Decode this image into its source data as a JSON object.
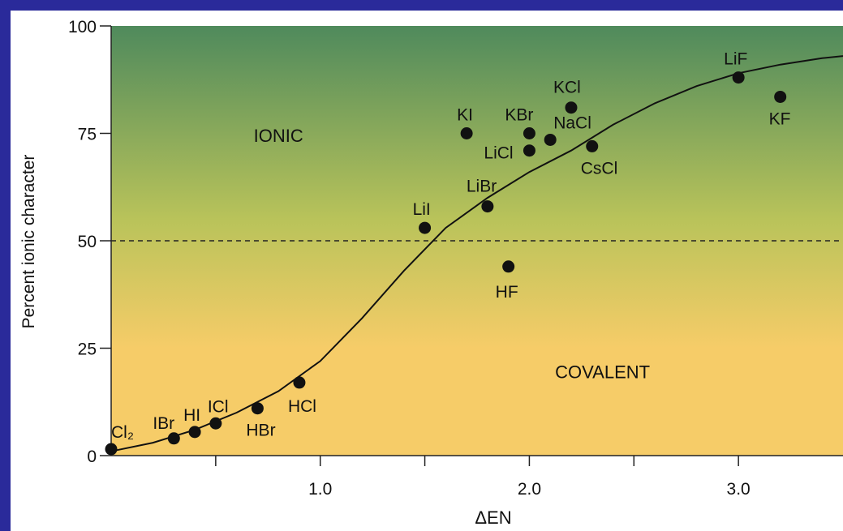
{
  "colors": {
    "frame": "#2a2a9a",
    "gradient_top": "#4f8a5c",
    "gradient_mid": "#b9c35a",
    "gradient_bottom": "#f6cc68",
    "curve": "#111111",
    "points": "#111111"
  },
  "chart_data": {
    "type": "scatter",
    "title": "",
    "xlabel": "ΔEN",
    "ylabel": "Percent ionic character",
    "xlim": [
      0,
      3.5
    ],
    "ylim": [
      0,
      100
    ],
    "x_ticks": [
      0.5,
      1.0,
      1.5,
      2.0,
      2.5,
      3.0
    ],
    "x_tick_labels": [
      "",
      "1.0",
      "",
      "2.0",
      "",
      "3.0"
    ],
    "y_ticks": [
      0,
      25,
      50,
      75,
      100
    ],
    "y_tick_labels": [
      "0",
      "25",
      "50",
      "75",
      "100"
    ],
    "reference_line": {
      "y": 50,
      "style": "dashed"
    },
    "region_labels": [
      {
        "text": "IONIC",
        "x": 0.8,
        "y": 73
      },
      {
        "text": "COVALENT",
        "x": 2.35,
        "y": 18
      }
    ],
    "curve": {
      "description": "fitted S-shaped curve",
      "x": [
        0,
        0.2,
        0.4,
        0.6,
        0.8,
        1.0,
        1.2,
        1.4,
        1.6,
        1.8,
        2.0,
        2.2,
        2.4,
        2.6,
        2.8,
        3.0,
        3.2,
        3.4,
        3.5
      ],
      "y": [
        1,
        3,
        6,
        10,
        15,
        22,
        32,
        43,
        53,
        60,
        66,
        71,
        77,
        82,
        86,
        89,
        91,
        92.5,
        93
      ]
    },
    "points": [
      {
        "label": "Cl₂",
        "x": 0.0,
        "y": 1.5
      },
      {
        "label": "IBr",
        "x": 0.3,
        "y": 4
      },
      {
        "label": "HI",
        "x": 0.4,
        "y": 5.5
      },
      {
        "label": "ICl",
        "x": 0.5,
        "y": 7.5
      },
      {
        "label": "HBr",
        "x": 0.7,
        "y": 11
      },
      {
        "label": "HCl",
        "x": 0.9,
        "y": 17
      },
      {
        "label": "LiI",
        "x": 1.5,
        "y": 53
      },
      {
        "label": "KI",
        "x": 1.7,
        "y": 75
      },
      {
        "label": "LiBr",
        "x": 1.8,
        "y": 58
      },
      {
        "label": "HF",
        "x": 1.9,
        "y": 44
      },
      {
        "label": "KBr",
        "x": 2.0,
        "y": 75
      },
      {
        "label": "LiCl",
        "x": 2.0,
        "y": 71
      },
      {
        "label": "NaCl",
        "x": 2.1,
        "y": 73.5
      },
      {
        "label": "KCl",
        "x": 2.2,
        "y": 81
      },
      {
        "label": "CsCl",
        "x": 2.3,
        "y": 72
      },
      {
        "label": "LiF",
        "x": 3.0,
        "y": 88
      },
      {
        "label": "KF",
        "x": 3.2,
        "y": 83.5
      }
    ]
  }
}
